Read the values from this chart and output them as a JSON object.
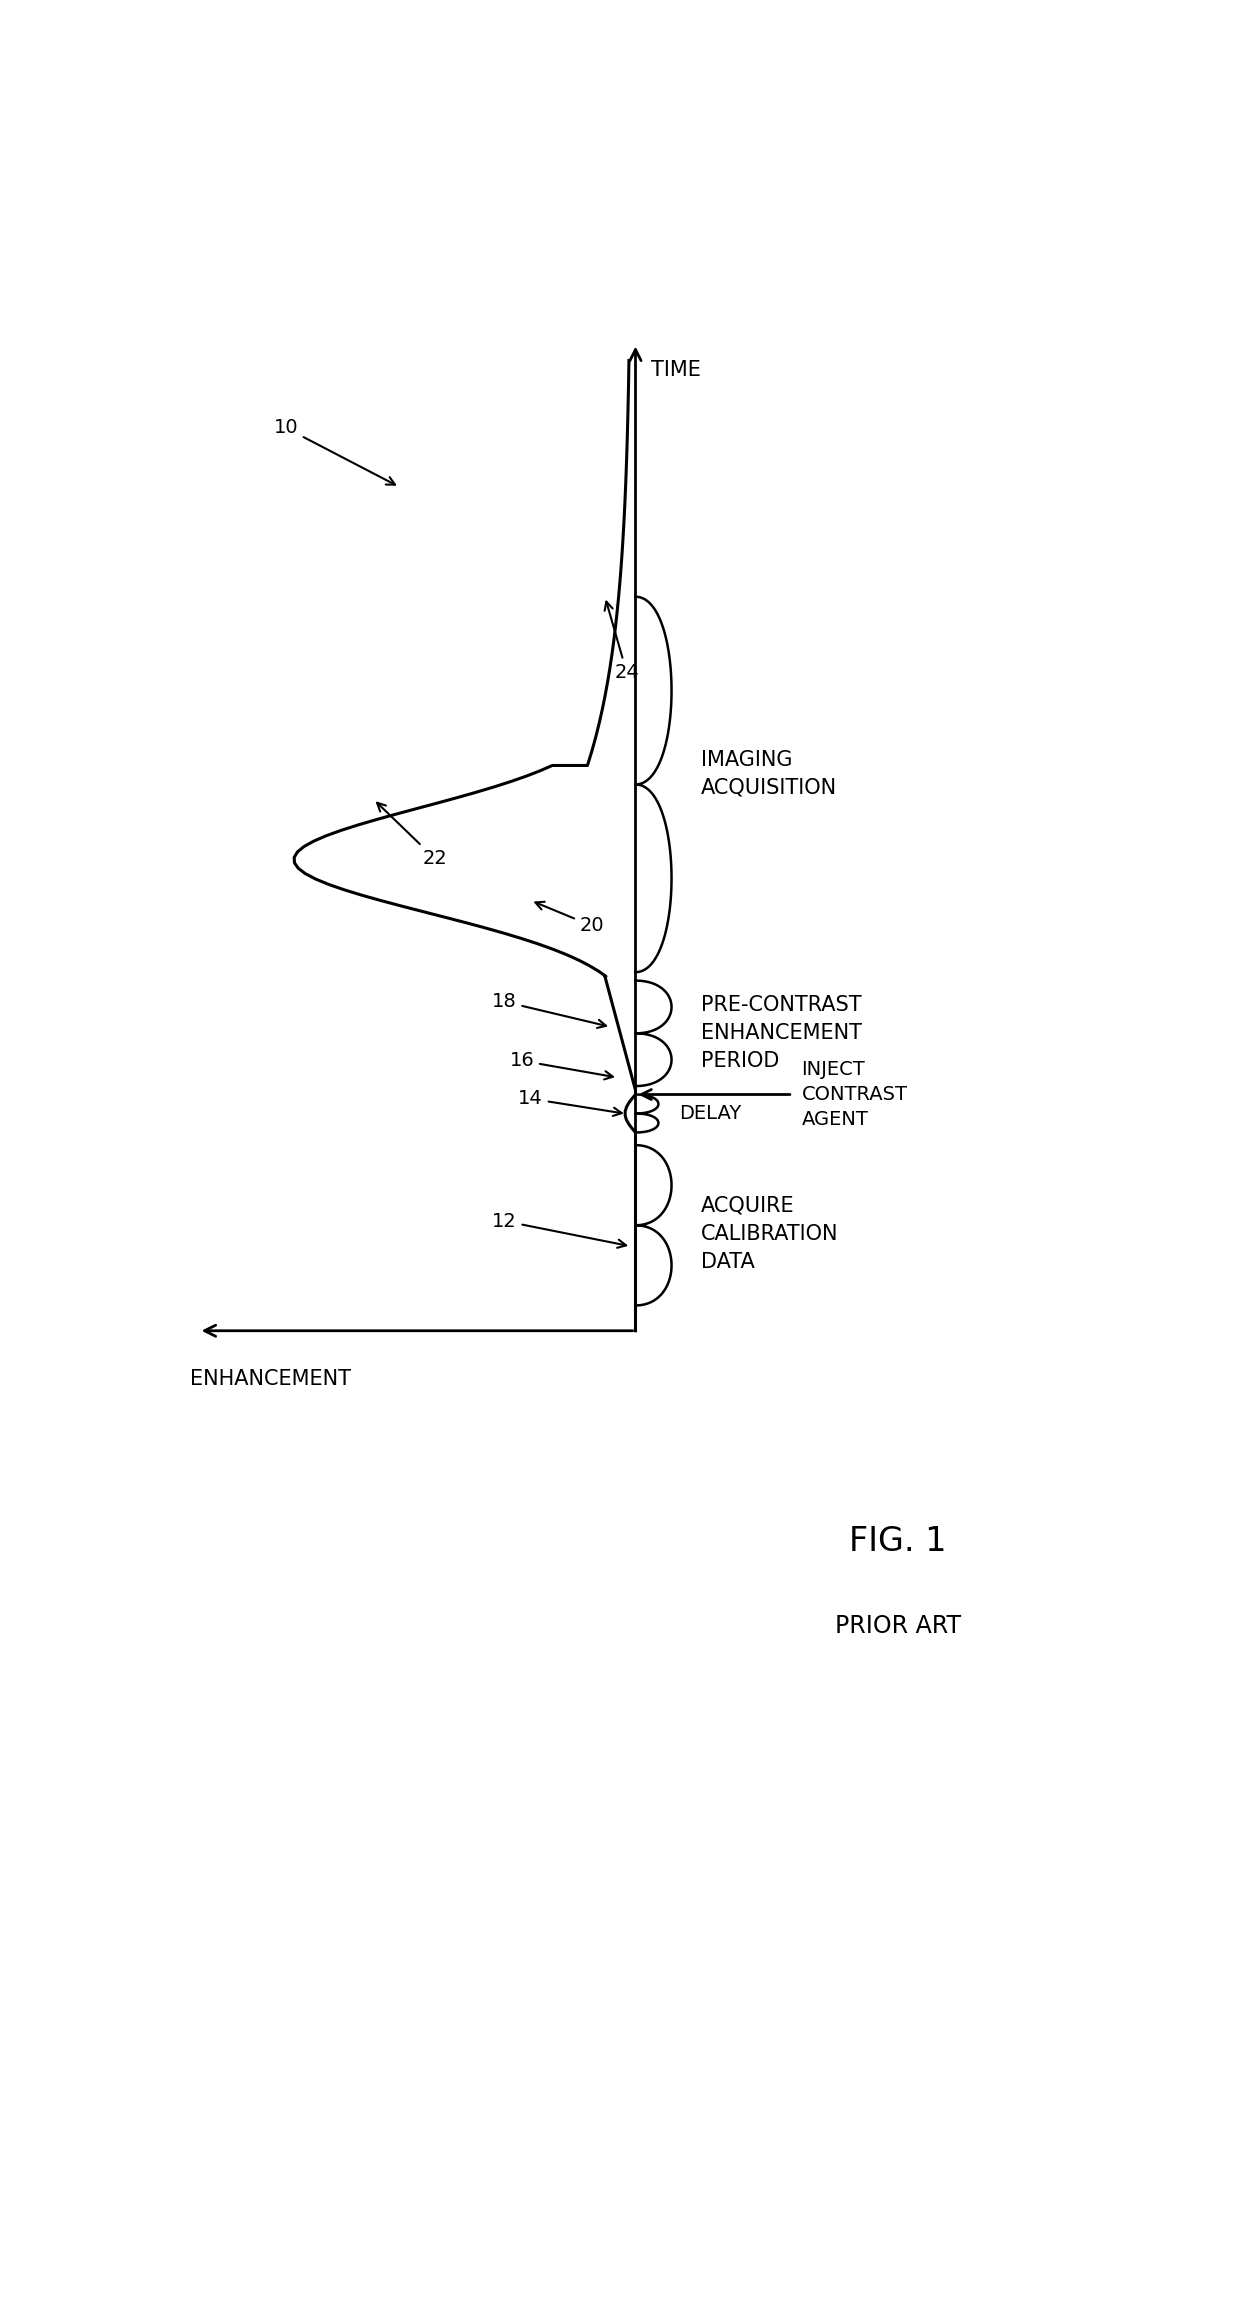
{
  "fig_width": 12.4,
  "fig_height": 23.01,
  "bg_color": "#ffffff",
  "title": "FIG. 1",
  "subtitle": "PRIOR ART",
  "xlabel": "ENHANCEMENT",
  "ylabel": "TIME",
  "curve_color": "#000000",
  "axis_color": "#000000",
  "text_color": "#000000",
  "fontsize_labels": 15,
  "fontsize_numbers": 14,
  "fontsize_title": 24,
  "fontsize_subtitle": 17,
  "time_axis_x": 5.5,
  "baseline_y": 8.5,
  "xlim": [
    0,
    11
  ],
  "ylim": [
    0,
    21
  ]
}
